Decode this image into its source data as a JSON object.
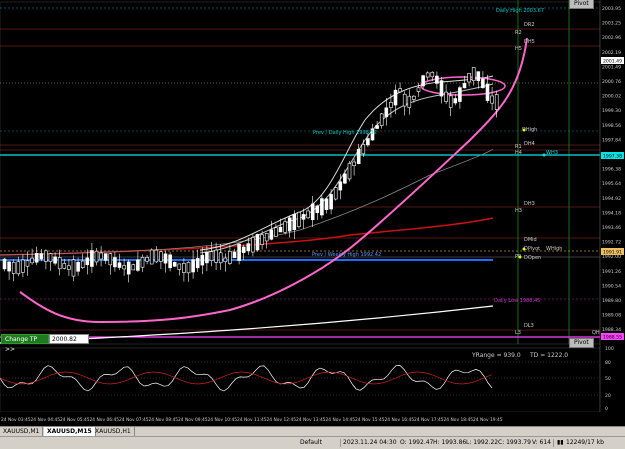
{
  "price_axis": [
    "2003.95",
    "2003.25",
    "2002.96",
    "2002.19",
    "2001.49",
    "2000.76",
    "2000.02",
    "1999.30",
    "1998.56",
    "1997.84",
    "1997.10",
    "1996.38",
    "1995.64",
    "1994.92",
    "1994.18",
    "1993.46",
    "1992.72",
    "1992.00",
    "1991.26",
    "1990.54",
    "1989.80",
    "1989.08",
    "1988.34"
  ],
  "current_price": "2001.49",
  "badges": {
    "pp": "1997.38",
    "dpivot": "1991.91",
    "qh": "1988.55"
  },
  "osc_axis": [
    "100",
    "80",
    "50",
    "20",
    "0"
  ],
  "time_axis": [
    "24 Nov 03:45",
    "24 Nov 04:45",
    "24 Nov 05:45",
    "24 Nov 06:45",
    "24 Nov 07:45",
    "24 Nov 08:45",
    "24 Nov 09:45",
    "24 Nov 10:45",
    "24 Nov 11:45",
    "24 Nov 12:45",
    "24 Nov 13:45",
    "24 Nov 14:45",
    "24 Nov 15:45",
    "24 Nov 16:45",
    "24 Nov 17:45",
    "24 Nov 18:45",
    "24 Nov 19:45"
  ],
  "texts": {
    "daily_high": "Daily High 2003.67",
    "prev_daily_high": "Prev / Daily High 1998.32",
    "prev_weekly_high": "Prev / Weekly High 1992.42",
    "daily_low": "Daily Low 1988.45",
    "yrange": "YRange = 939.0",
    "td": "TD = 1222.0"
  },
  "labels": {
    "dr2": "DR2",
    "r2": "R2",
    "dh5": "DH5",
    "h5": "H5",
    "dhigh": "DHigh",
    "dh4": "DH4",
    "r1": "R1",
    "h4": "H4",
    "wh3": "WH3",
    "dh3": "DH3",
    "h3": "H3",
    "dmid": "DMid",
    "dpivot": "DPivot",
    "whigh": "WHigh",
    "pp": "PP",
    "dopen": "DOpen",
    "dl3": "DL3",
    "l3": "L3",
    "qh": "QH"
  },
  "change_tp": {
    "button": "Change TP >>",
    "value": "2000.82"
  },
  "pivot_tag": "Pivot",
  "tabs": [
    "XAUUSD,M1",
    "XAUUSD,M15",
    "XAUUSD,H1"
  ],
  "active_tab": 1,
  "status": {
    "profile": "Default",
    "datetime": "2023.11.24 04:30",
    "open": "O: 1992.47",
    "high": "H: 1993.86",
    "low": "L: 1992.22",
    "close": "C: 1993.79",
    "volume": "V: 614",
    "traffic": "12249/17 kb"
  },
  "colors": {
    "background": "#000000",
    "candle": "#ffffff",
    "magenta_ma": "#ff66cc",
    "red_ma": "#cc1111",
    "cyan": "#00e5e5",
    "blue_line": "#1e6fff"
  }
}
